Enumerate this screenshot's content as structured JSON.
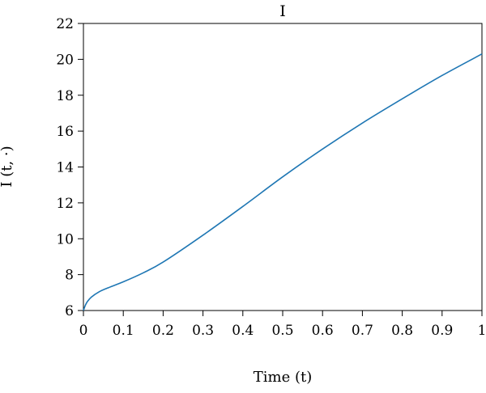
{
  "chart_data": {
    "type": "line",
    "title": "I",
    "xlabel": "Time (t)",
    "ylabel": "I (t, ·)",
    "xlim": [
      0,
      1
    ],
    "ylim": [
      6,
      22
    ],
    "x_ticks": [
      0,
      0.1,
      0.2,
      0.3,
      0.4,
      0.5,
      0.6,
      0.7,
      0.8,
      0.9,
      1
    ],
    "x_tick_labels": [
      "0",
      "0.1",
      "0.2",
      "0.3",
      "0.4",
      "0.5",
      "0.6",
      "0.7",
      "0.8",
      "0.9",
      "1"
    ],
    "y_ticks": [
      6,
      8,
      10,
      12,
      14,
      16,
      18,
      20,
      22
    ],
    "y_tick_labels": [
      "6",
      "8",
      "10",
      "12",
      "14",
      "16",
      "18",
      "20",
      "22"
    ],
    "grid": false,
    "legend": "none",
    "series": [
      {
        "color": "#1f77b4",
        "x": [
          0,
          0.005,
          0.01,
          0.02,
          0.04,
          0.06,
          0.1,
          0.15,
          0.2,
          0.3,
          0.4,
          0.5,
          0.6,
          0.7,
          0.8,
          0.9,
          1.0
        ],
        "y": [
          6.0,
          6.3,
          6.5,
          6.75,
          7.05,
          7.25,
          7.6,
          8.1,
          8.7,
          10.2,
          11.8,
          13.45,
          15.0,
          16.45,
          17.8,
          19.1,
          20.3
        ]
      }
    ]
  }
}
